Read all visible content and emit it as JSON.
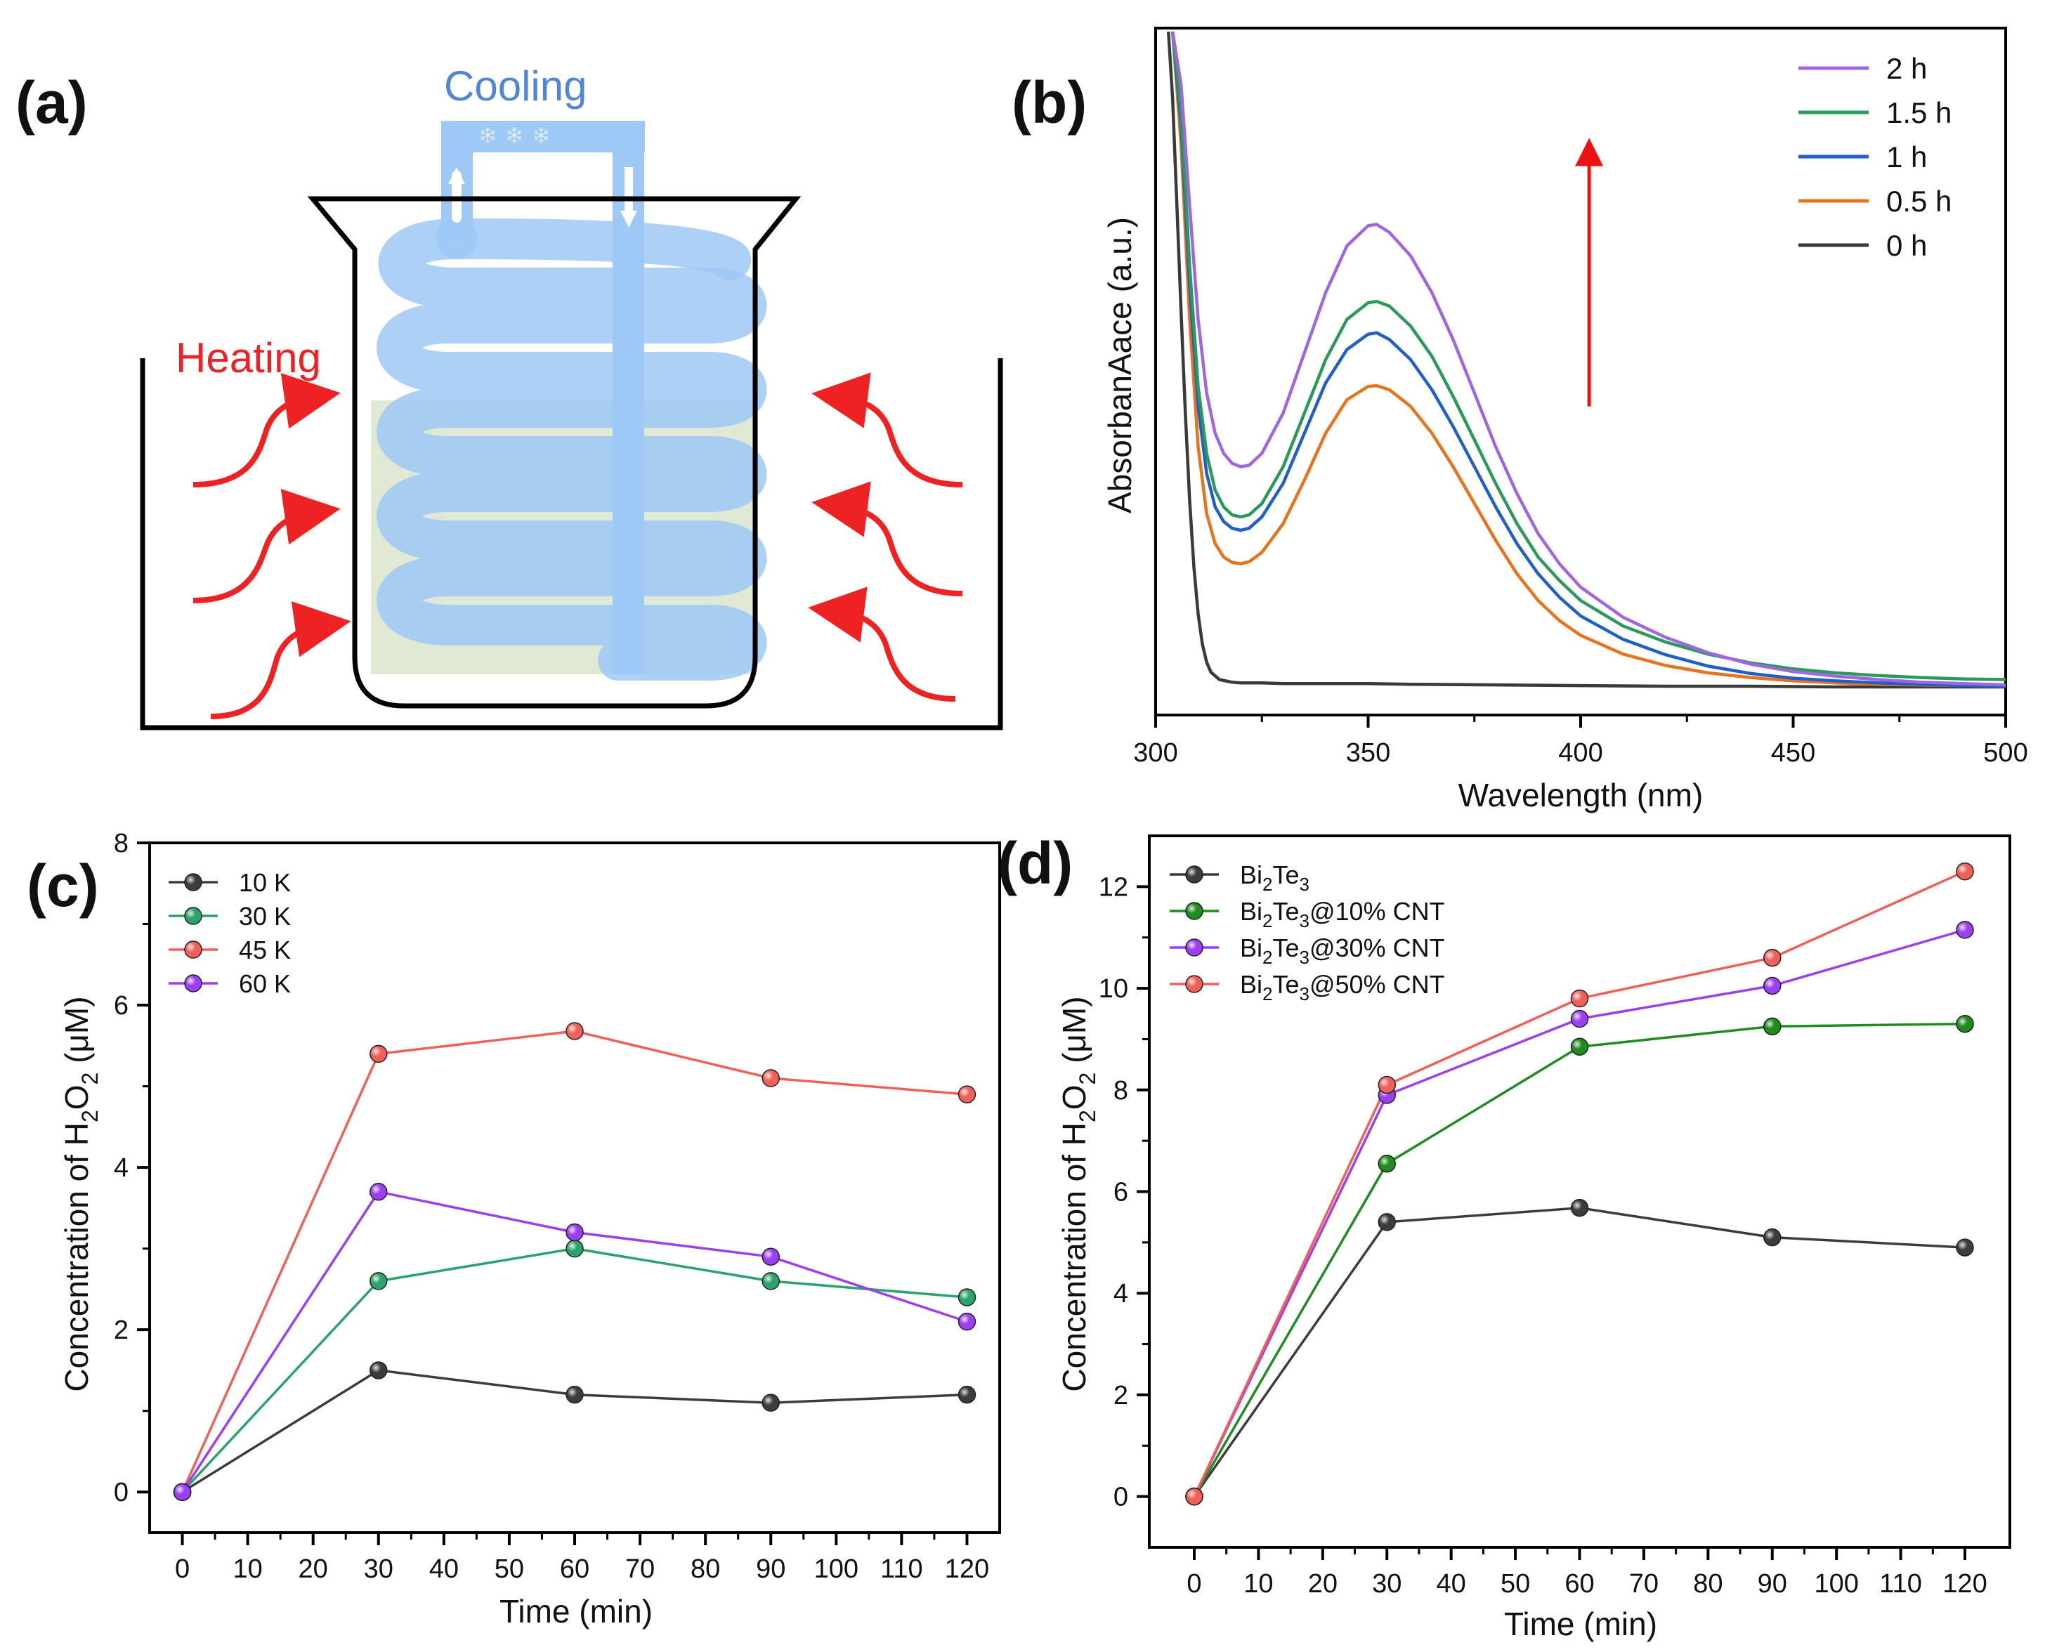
{
  "panels": {
    "a": {
      "label": "(a)",
      "cooling_text": "Cooling",
      "heating_text": "Heating",
      "colors": {
        "cooling": "#4f86d6",
        "heating": "#ee2222",
        "coil": "#9ec8f5",
        "liquid": "#dfe9d3"
      }
    },
    "b": {
      "label": "(b)"
    },
    "c": {
      "label": "(c)"
    },
    "d": {
      "label": "(d)"
    }
  },
  "chart_data": [
    {
      "id": "b",
      "type": "line",
      "xlabel": "Wavelength (nm)",
      "ylabel": "AbsorbanAace (a.u.)",
      "xlim": [
        300,
        500
      ],
      "ylim": [
        0,
        1
      ],
      "xticks": [
        300,
        350,
        400,
        450,
        500
      ],
      "yticks": [],
      "arrow": {
        "x": 402,
        "y_from": 0.44,
        "y_to": 0.82,
        "color": "#ee1111"
      },
      "series": [
        {
          "name": "2 h",
          "color": "#a065e0",
          "x": [
            304,
            306,
            308,
            310,
            312,
            314,
            316,
            318,
            320,
            322,
            325,
            330,
            335,
            340,
            345,
            350,
            352,
            355,
            360,
            365,
            370,
            375,
            380,
            385,
            390,
            395,
            400,
            410,
            420,
            430,
            440,
            450,
            460,
            470,
            480,
            490,
            500
          ],
          "y": [
            1.0,
            0.92,
            0.74,
            0.57,
            0.46,
            0.4,
            0.37,
            0.355,
            0.35,
            0.352,
            0.37,
            0.43,
            0.52,
            0.61,
            0.68,
            0.71,
            0.712,
            0.7,
            0.665,
            0.61,
            0.54,
            0.46,
            0.38,
            0.31,
            0.25,
            0.205,
            0.17,
            0.125,
            0.095,
            0.072,
            0.055,
            0.044,
            0.037,
            0.032,
            0.028,
            0.026,
            0.024
          ]
        },
        {
          "name": "1.5 h",
          "color": "#2a9a5a",
          "x": [
            304,
            306,
            308,
            310,
            312,
            314,
            316,
            318,
            320,
            322,
            325,
            330,
            335,
            340,
            345,
            350,
            352,
            355,
            360,
            365,
            370,
            375,
            380,
            385,
            390,
            395,
            400,
            410,
            420,
            430,
            440,
            450,
            460,
            470,
            480,
            490,
            500
          ],
          "y": [
            1.0,
            0.88,
            0.65,
            0.47,
            0.37,
            0.315,
            0.29,
            0.278,
            0.275,
            0.278,
            0.295,
            0.35,
            0.43,
            0.51,
            0.57,
            0.595,
            0.597,
            0.59,
            0.56,
            0.515,
            0.455,
            0.39,
            0.325,
            0.265,
            0.215,
            0.18,
            0.15,
            0.112,
            0.088,
            0.07,
            0.057,
            0.048,
            0.042,
            0.038,
            0.035,
            0.033,
            0.032
          ]
        },
        {
          "name": "1 h",
          "color": "#1f5fc8",
          "x": [
            304,
            306,
            308,
            310,
            312,
            314,
            316,
            318,
            320,
            322,
            325,
            330,
            335,
            340,
            345,
            350,
            352,
            355,
            360,
            365,
            370,
            375,
            380,
            385,
            390,
            395,
            400,
            410,
            420,
            430,
            440,
            450,
            460,
            470,
            480,
            490,
            500
          ],
          "y": [
            1.0,
            0.86,
            0.62,
            0.44,
            0.34,
            0.29,
            0.268,
            0.258,
            0.255,
            0.258,
            0.275,
            0.325,
            0.4,
            0.475,
            0.525,
            0.548,
            0.55,
            0.54,
            0.51,
            0.465,
            0.41,
            0.35,
            0.29,
            0.235,
            0.19,
            0.155,
            0.127,
            0.092,
            0.069,
            0.052,
            0.041,
            0.034,
            0.03,
            0.027,
            0.025,
            0.023,
            0.022
          ]
        },
        {
          "name": "0.5 h",
          "color": "#e8731c",
          "x": [
            304,
            306,
            308,
            310,
            312,
            314,
            316,
            318,
            320,
            322,
            325,
            330,
            335,
            340,
            345,
            350,
            352,
            355,
            360,
            365,
            370,
            375,
            380,
            385,
            390,
            395,
            400,
            410,
            420,
            430,
            440,
            450,
            460,
            470,
            480,
            490,
            500
          ],
          "y": [
            1.0,
            0.83,
            0.57,
            0.38,
            0.28,
            0.235,
            0.215,
            0.207,
            0.205,
            0.208,
            0.222,
            0.265,
            0.33,
            0.4,
            0.45,
            0.47,
            0.471,
            0.465,
            0.44,
            0.4,
            0.35,
            0.295,
            0.24,
            0.19,
            0.15,
            0.12,
            0.098,
            0.07,
            0.053,
            0.042,
            0.035,
            0.03,
            0.027,
            0.025,
            0.024,
            0.023,
            0.022
          ]
        },
        {
          "name": "0 h",
          "color": "#3a3a3a",
          "x": [
            303,
            304,
            305,
            306,
            307,
            308,
            309,
            310,
            311,
            312,
            313,
            315,
            318,
            320,
            325,
            330,
            340,
            350,
            360,
            380,
            400,
            420,
            440,
            460,
            480,
            500
          ],
          "y": [
            1.0,
            0.9,
            0.74,
            0.58,
            0.43,
            0.3,
            0.2,
            0.13,
            0.085,
            0.058,
            0.043,
            0.032,
            0.028,
            0.027,
            0.027,
            0.026,
            0.026,
            0.026,
            0.025,
            0.024,
            0.023,
            0.022,
            0.022,
            0.021,
            0.021,
            0.021
          ]
        }
      ]
    },
    {
      "id": "c",
      "type": "line",
      "xlabel": "Time (min)",
      "ylabel_main": "Concentration of H",
      "ylabel_sub": "2",
      "ylabel_main2": "O",
      "ylabel_sub2": "2",
      "ylabel_tail": " (μM)",
      "xlim": [
        -5,
        125
      ],
      "ylim": [
        -0.5,
        8
      ],
      "xticks": [
        0,
        10,
        20,
        30,
        40,
        50,
        60,
        70,
        80,
        90,
        100,
        110,
        120
      ],
      "yticks": [
        0,
        2,
        4,
        6,
        8
      ],
      "x": [
        0,
        30,
        60,
        90,
        120
      ],
      "series": [
        {
          "name": "10 K",
          "color": "#3c3c3c",
          "values": [
            0,
            1.5,
            1.2,
            1.1,
            1.2
          ]
        },
        {
          "name": "30 K",
          "color": "#2ca36b",
          "values": [
            0,
            2.6,
            3.0,
            2.6,
            2.4
          ]
        },
        {
          "name": "45 K",
          "color": "#f0605a",
          "values": [
            0,
            5.4,
            5.68,
            5.1,
            4.9
          ]
        },
        {
          "name": "60 K",
          "color": "#9b3ff0",
          "values": [
            0,
            3.7,
            3.2,
            2.9,
            2.1
          ]
        }
      ]
    },
    {
      "id": "d",
      "type": "line",
      "xlabel": "Time (min)",
      "ylabel_main": "Concentration of H",
      "ylabel_sub": "2",
      "ylabel_main2": "O",
      "ylabel_sub2": "2",
      "ylabel_tail": " (μM)",
      "xlim": [
        -7,
        127
      ],
      "ylim": [
        -1,
        13
      ],
      "xticks": [
        0,
        10,
        20,
        30,
        40,
        50,
        60,
        70,
        80,
        90,
        100,
        110,
        120
      ],
      "yticks": [
        0,
        2,
        4,
        6,
        8,
        10,
        12
      ],
      "x": [
        0,
        30,
        60,
        90,
        120
      ],
      "series": [
        {
          "name": "Bi2Te3",
          "name_parts": [
            "Bi",
            "2",
            "Te",
            "3",
            ""
          ],
          "color": "#3c3c3c",
          "values": [
            0,
            5.4,
            5.68,
            5.1,
            4.9
          ]
        },
        {
          "name": "Bi2Te3@10% CNT",
          "name_parts": [
            "Bi",
            "2",
            "Te",
            "3",
            "@10% CNT"
          ],
          "color": "#1e8c1e",
          "values": [
            0,
            6.55,
            8.85,
            9.25,
            9.3
          ]
        },
        {
          "name": "Bi2Te3@30% CNT",
          "name_parts": [
            "Bi",
            "2",
            "Te",
            "3",
            "@30% CNT"
          ],
          "color": "#9b3ff0",
          "values": [
            0,
            7.9,
            9.4,
            10.05,
            11.15
          ]
        },
        {
          "name": "Bi2Te3@50% CNT",
          "name_parts": [
            "Bi",
            "2",
            "Te",
            "3",
            "@50% CNT"
          ],
          "color": "#f0605a",
          "values": [
            0,
            8.1,
            9.8,
            10.6,
            12.3
          ]
        }
      ]
    }
  ]
}
